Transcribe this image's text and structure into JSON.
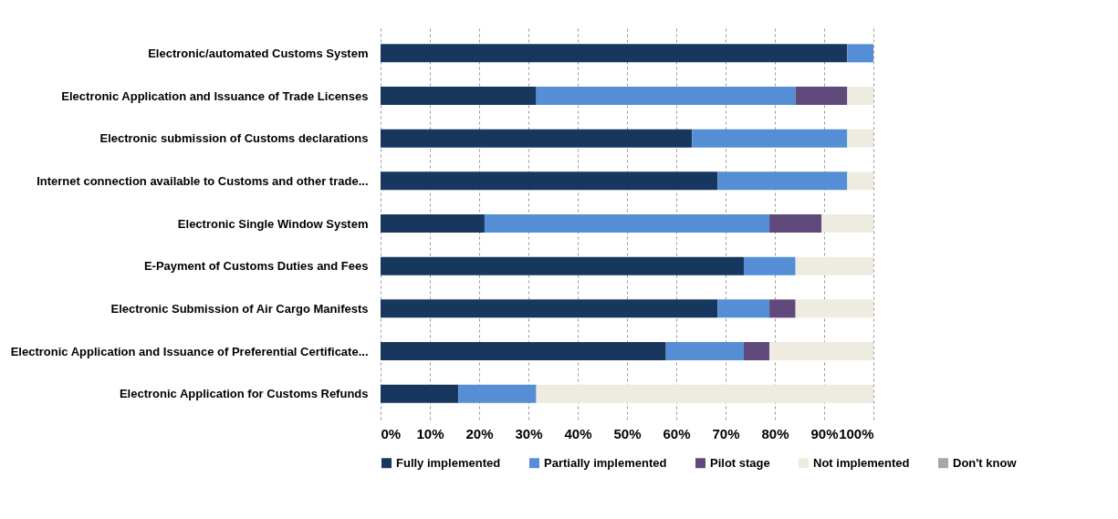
{
  "chart_data": {
    "type": "bar",
    "orientation": "horizontal",
    "stacked": true,
    "categories": [
      "Electronic/automated Customs System",
      "Electronic Application and Issuance of Trade Licenses",
      "Electronic submission of Customs declarations",
      "Internet connection available to Customs and other trade...",
      "Electronic Single Window System",
      "E-Payment of Customs Duties and Fees",
      "Electronic Submission of Air Cargo Manifests",
      "Electronic Application and Issuance of Preferential Certificate...",
      "Electronic Application for Customs Refunds"
    ],
    "series": [
      {
        "name": "Fully implemented",
        "color": "#17375e",
        "values": [
          94.7,
          31.6,
          63.2,
          68.4,
          21.1,
          73.7,
          68.4,
          57.9,
          15.8
        ]
      },
      {
        "name": "Partially implemented",
        "color": "#558ed5",
        "values": [
          5.3,
          52.6,
          31.5,
          26.3,
          57.8,
          10.5,
          10.5,
          15.8,
          15.8
        ]
      },
      {
        "name": "Pilot stage",
        "color": "#604a7b",
        "values": [
          0,
          10.5,
          0,
          0,
          10.6,
          0,
          5.3,
          5.2,
          0
        ]
      },
      {
        "name": "Not implemented",
        "color": "#eeece1",
        "values": [
          0,
          5.3,
          5.3,
          5.3,
          10.5,
          15.8,
          15.8,
          21.1,
          68.4
        ]
      },
      {
        "name": "Don't know",
        "color": "#a6a6a6",
        "values": [
          0,
          0,
          0,
          0,
          0,
          0,
          0,
          0,
          0
        ]
      }
    ],
    "xlim": [
      0,
      100
    ],
    "xticks": [
      {
        "value": 0,
        "label": "0%"
      },
      {
        "value": 10,
        "label": "10%"
      },
      {
        "value": 20,
        "label": "20%"
      },
      {
        "value": 30,
        "label": "30%"
      },
      {
        "value": 40,
        "label": "40%"
      },
      {
        "value": 50,
        "label": "50%"
      },
      {
        "value": 60,
        "label": "60%"
      },
      {
        "value": 70,
        "label": "70%"
      },
      {
        "value": 80,
        "label": "80%"
      },
      {
        "value": 90,
        "label": "90%"
      },
      {
        "value": 100,
        "label": "100%"
      }
    ],
    "grid": "x",
    "legend": "bottom"
  }
}
